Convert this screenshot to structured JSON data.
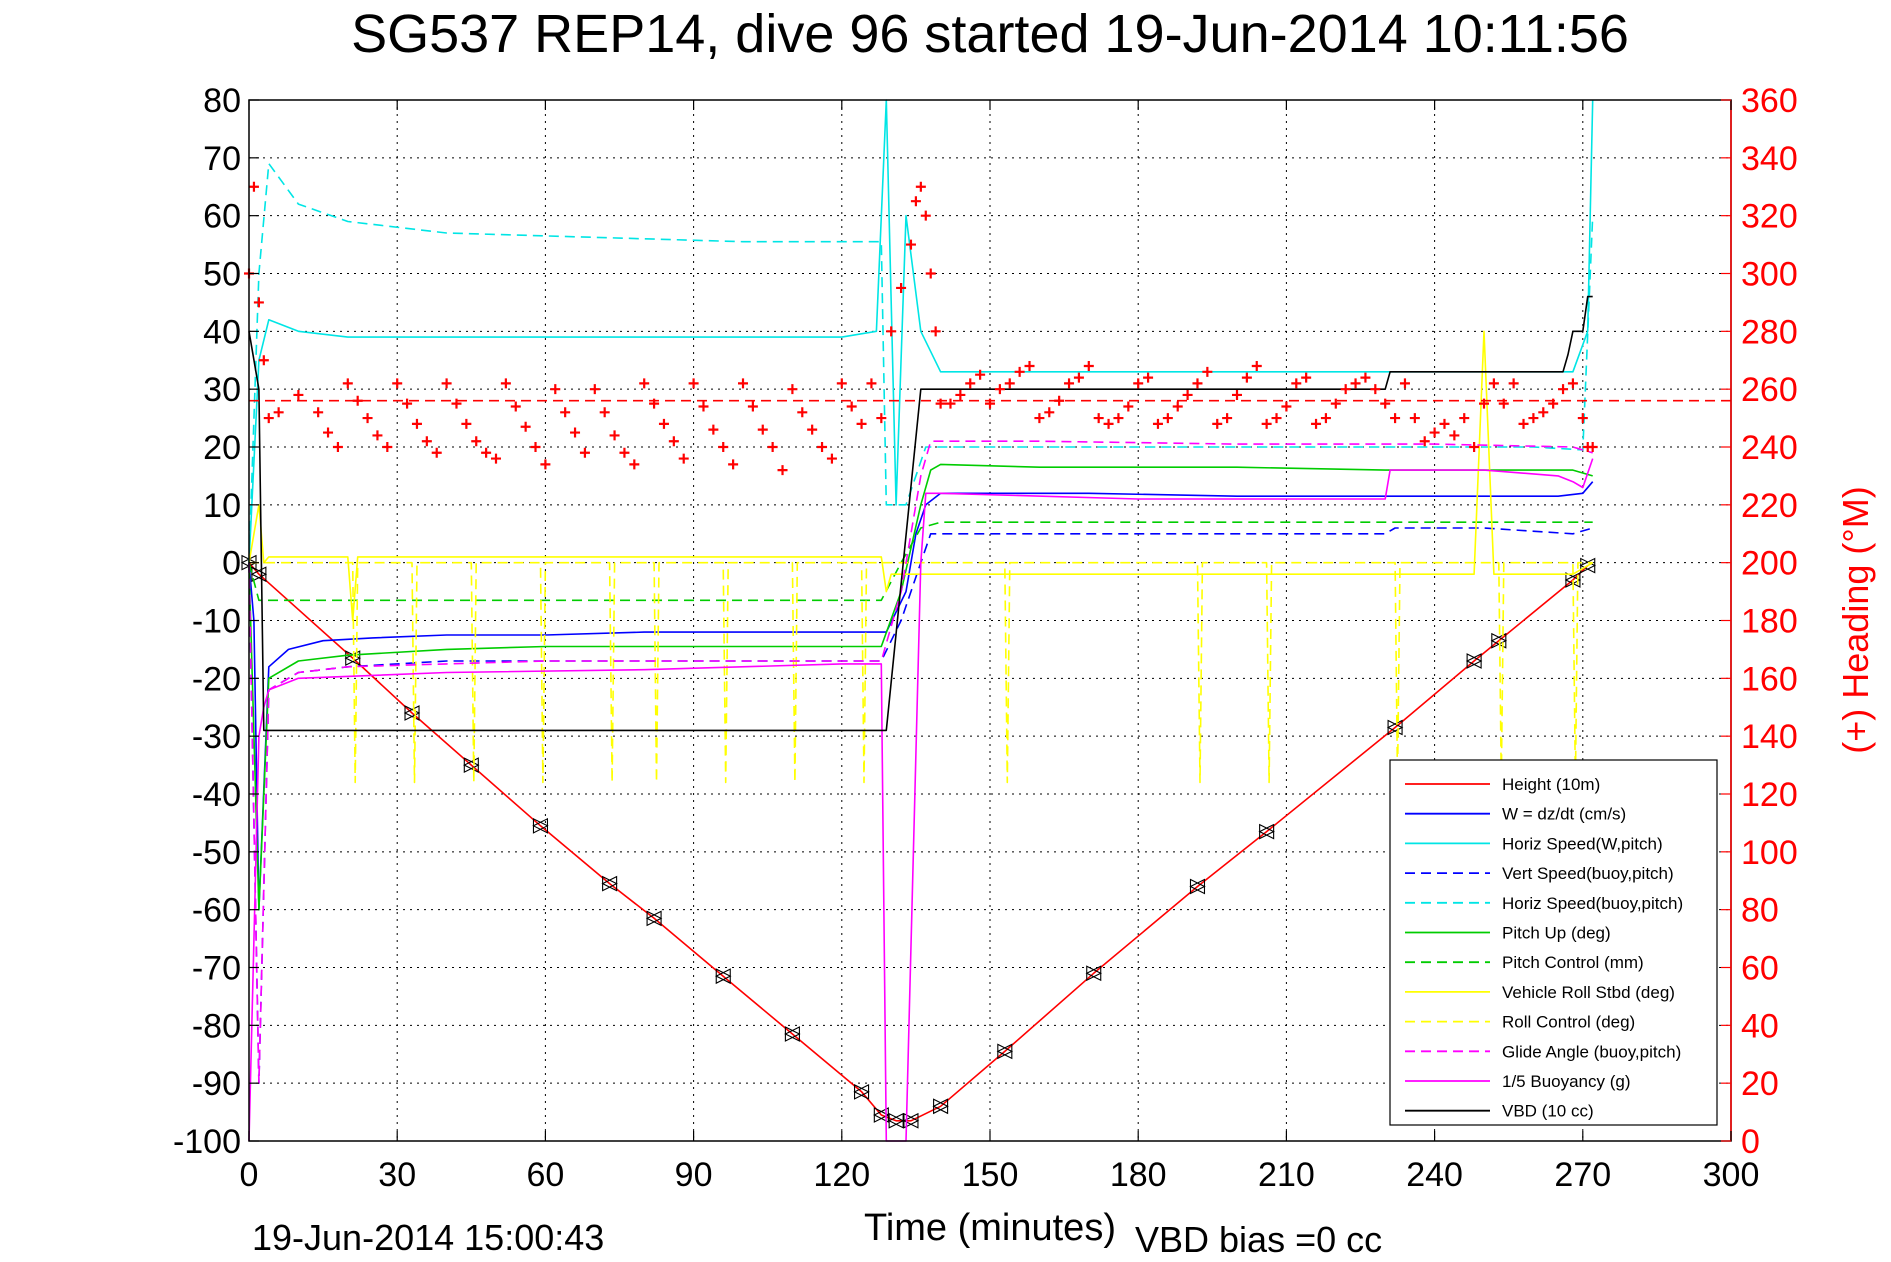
{
  "chart_data": {
    "type": "line",
    "title": "SG537 REP14, dive 96 started 19-Jun-2014 10:11:56",
    "xlabel": "Time (minutes)",
    "ylabel": "",
    "y2label": "(+) Heading (°M)",
    "xlim": [
      0,
      300
    ],
    "ylim": [
      -100,
      80
    ],
    "y2lim": [
      0,
      360
    ],
    "xticks": [
      "0",
      "30",
      "60",
      "90",
      "120",
      "150",
      "180",
      "210",
      "240",
      "270",
      "300"
    ],
    "yticks": [
      "80",
      "70",
      "60",
      "50",
      "40",
      "30",
      "20",
      "10",
      "0",
      "-10",
      "-20",
      "-30",
      "-40",
      "-50",
      "-60",
      "-70",
      "-80",
      "-90",
      "-100"
    ],
    "y2ticks": [
      "360",
      "340",
      "320",
      "300",
      "280",
      "260",
      "240",
      "220",
      "200",
      "180",
      "160",
      "140",
      "120",
      "100",
      "80",
      "60",
      "40",
      "20",
      "0"
    ],
    "grid": true,
    "legend_position": "bottom-right",
    "footer_left": "19-Jun-2014 15:00:43",
    "footer_right": "VBD bias =0 cc",
    "series": [
      {
        "name": "Height (10m)",
        "color": "#ff0000",
        "dash": "solid",
        "x": [
          0,
          2,
          21,
          33,
          45,
          59,
          73,
          82,
          96,
          110,
          124,
          128,
          131,
          134,
          140,
          153,
          171,
          192,
          206,
          232,
          248,
          253,
          268,
          271
        ],
        "y": [
          0,
          -2,
          -16.5,
          -26,
          -35,
          -45.5,
          -55.5,
          -61.5,
          -71.5,
          -81.5,
          -91.5,
          -95.5,
          -96.5,
          -96.5,
          -94,
          -84.5,
          -71,
          -56,
          -46.5,
          -28.5,
          -17,
          -13.5,
          -3,
          -0.5
        ]
      },
      {
        "name": "W = dz/dt (cm/s)",
        "color": "#0000ff",
        "dash": "solid",
        "x": [
          0,
          1,
          2,
          4,
          8,
          15,
          25,
          40,
          60,
          80,
          100,
          120,
          129,
          133,
          135,
          137,
          140,
          150,
          170,
          200,
          230,
          250,
          265,
          270,
          272
        ],
        "y": [
          0,
          -10,
          -60,
          -18,
          -15,
          -13.5,
          -13,
          -12.5,
          -12.5,
          -12,
          -12,
          -12,
          -12,
          -5,
          5,
          10,
          12,
          12,
          12,
          11.5,
          11.5,
          11.5,
          11.5,
          12,
          14
        ]
      },
      {
        "name": "Horiz Speed(W,pitch)",
        "color": "#00e5e5",
        "dash": "solid",
        "x": [
          0,
          2,
          4,
          10,
          20,
          40,
          60,
          80,
          100,
          120,
          127,
          129,
          131,
          133,
          136,
          140,
          160,
          200,
          240,
          268,
          271,
          272
        ],
        "y": [
          0,
          35,
          42,
          40,
          39,
          39,
          39,
          39,
          39,
          39,
          40,
          80,
          10,
          60,
          40,
          33,
          33,
          33,
          33,
          33,
          40,
          80
        ]
      },
      {
        "name": "Vert Speed(buoy,pitch)",
        "color": "#0000ff",
        "dash": "dashed",
        "x": [
          0,
          2,
          4,
          10,
          20,
          40,
          60,
          80,
          100,
          120,
          128,
          132,
          136,
          138,
          140,
          150,
          180,
          210,
          230,
          232,
          250,
          268,
          272
        ],
        "y": [
          0,
          -90,
          -22,
          -19,
          -18,
          -17,
          -17,
          -17,
          -17,
          -17,
          -17,
          -10,
          0,
          5,
          5,
          5,
          5,
          5,
          5,
          6,
          6,
          5,
          6
        ]
      },
      {
        "name": "Horiz Speed(buoy,pitch)",
        "color": "#00e5e5",
        "dash": "dashed",
        "x": [
          0,
          2,
          4,
          10,
          20,
          40,
          60,
          80,
          100,
          120,
          128,
          129,
          133,
          137,
          140,
          160,
          200,
          230,
          232,
          260,
          270,
          272
        ],
        "y": [
          0,
          50,
          69,
          62,
          59,
          57,
          56.5,
          56,
          55.5,
          55.5,
          55.5,
          10,
          10,
          20,
          20,
          20,
          20,
          20,
          20,
          20,
          19.5,
          60
        ]
      },
      {
        "name": "Pitch Up (deg)",
        "color": "#00cc00",
        "dash": "solid",
        "x": [
          0,
          2,
          4,
          10,
          20,
          40,
          60,
          80,
          100,
          120,
          128,
          132,
          136,
          138,
          140,
          160,
          200,
          230,
          250,
          268,
          272
        ],
        "y": [
          0,
          -60,
          -20,
          -17,
          -16,
          -15,
          -14.5,
          -14.5,
          -14.5,
          -14.5,
          -14.5,
          -5,
          10,
          16,
          17,
          16.5,
          16.5,
          16,
          16,
          16,
          15
        ]
      },
      {
        "name": "Pitch Control (mm)",
        "color": "#00cc00",
        "dash": "dashed",
        "x": [
          0,
          2,
          5,
          20,
          60,
          100,
          128,
          132,
          136,
          140,
          180,
          220,
          250,
          268,
          272
        ],
        "y": [
          0,
          -6.5,
          -6.5,
          -6.5,
          -6.5,
          -6.5,
          -6.5,
          0,
          6,
          7,
          7,
          7,
          7,
          7,
          7
        ]
      },
      {
        "name": "Vehicle Roll Stbd (deg)",
        "color": "#ffff00",
        "dash": "solid",
        "x": [
          0,
          2,
          3,
          4,
          20,
          21,
          22,
          60,
          100,
          128,
          129,
          130,
          140,
          160,
          200,
          248,
          250,
          252,
          268,
          272
        ],
        "y": [
          0,
          10,
          0,
          1,
          1,
          -10,
          1,
          1,
          1,
          1,
          -5,
          -2,
          -2,
          -2,
          -2,
          -2,
          40,
          -2,
          -2,
          0
        ]
      },
      {
        "name": "Roll Control (deg)",
        "color": "#ffff00",
        "dash": "dashed",
        "x": [
          0,
          3,
          4,
          21,
          21.5,
          22,
          33,
          33.5,
          34,
          45,
          45.5,
          46,
          59,
          59.5,
          60,
          73,
          73.5,
          74,
          82,
          82.5,
          83,
          96,
          96.5,
          97,
          110,
          110.5,
          111,
          124,
          124.5,
          125,
          128,
          140,
          153,
          153.5,
          154,
          192,
          192.5,
          193,
          206,
          206.5,
          207,
          232,
          232.5,
          233,
          253,
          253.5,
          254,
          268,
          268.5,
          269,
          272
        ],
        "y": [
          0,
          0,
          0,
          0,
          -38,
          0,
          0,
          -38,
          0,
          0,
          -38,
          0,
          0,
          -38,
          0,
          0,
          -38,
          0,
          0,
          -38,
          0,
          0,
          -38,
          0,
          0,
          -38,
          0,
          0,
          -38,
          0,
          0,
          0,
          0,
          -38,
          0,
          0,
          -38,
          0,
          0,
          -38,
          0,
          0,
          -38,
          0,
          0,
          -38,
          0,
          0,
          -38,
          0,
          0
        ]
      },
      {
        "name": "Glide Angle (buoy,pitch)",
        "color": "#ff00ff",
        "dash": "dashed",
        "x": [
          0,
          2,
          4,
          10,
          20,
          40,
          60,
          80,
          100,
          120,
          128,
          132,
          136,
          138,
          140,
          160,
          200,
          240,
          268,
          272
        ],
        "y": [
          0,
          -90,
          -22,
          -19,
          -18,
          -17.5,
          -17,
          -17,
          -17,
          -17,
          -17,
          -5,
          15,
          21,
          21,
          21,
          20.5,
          20.5,
          20,
          19
        ]
      },
      {
        "name": "1/5 Buoyancy (g)",
        "color": "#ff00ff",
        "dash": "solid",
        "x": [
          0,
          2,
          3,
          4,
          10,
          40,
          80,
          120,
          128,
          129,
          133,
          136,
          137,
          140,
          180,
          220,
          230,
          231,
          250,
          265,
          268,
          270,
          272
        ],
        "y": [
          -100,
          -30,
          -25,
          -22,
          -20,
          -19,
          -18.5,
          -17.5,
          -17.5,
          -100,
          -100,
          0,
          12,
          12,
          11,
          11,
          11,
          16,
          16,
          15,
          14,
          13,
          18
        ]
      },
      {
        "name": "VBD (10 cc)",
        "color": "#000000",
        "dash": "solid",
        "x": [
          0,
          2,
          3,
          4,
          20,
          60,
          100,
          128,
          129,
          136,
          137,
          140,
          180,
          220,
          230,
          231,
          250,
          266,
          267,
          268,
          270,
          271,
          272
        ],
        "y": [
          40,
          30,
          -29,
          -29,
          -29,
          -29,
          -29,
          -29,
          -29,
          30,
          30,
          30,
          30,
          30,
          30,
          33,
          33,
          33,
          36,
          40,
          40,
          46,
          46
        ]
      },
      {
        "name": "",
        "color": "#ff0000",
        "dash": "dashed",
        "axis": "y2",
        "x": [
          0,
          300
        ],
        "y": [
          256,
          256
        ]
      },
      {
        "name": "",
        "color": "#ff0000",
        "dash": "markers",
        "axis": "y2",
        "x": [
          0,
          1,
          2,
          3,
          4,
          6,
          10,
          14,
          16,
          18,
          20,
          22,
          24,
          26,
          28,
          30,
          32,
          34,
          36,
          38,
          40,
          42,
          44,
          46,
          48,
          50,
          52,
          54,
          56,
          58,
          60,
          62,
          64,
          66,
          68,
          70,
          72,
          74,
          76,
          78,
          80,
          82,
          84,
          86,
          88,
          90,
          92,
          94,
          96,
          98,
          100,
          102,
          104,
          106,
          108,
          110,
          112,
          114,
          116,
          118,
          120,
          122,
          124,
          126,
          128,
          130,
          132,
          134,
          135,
          136,
          137,
          138,
          139,
          140,
          142,
          144,
          146,
          148,
          150,
          152,
          154,
          156,
          158,
          160,
          162,
          164,
          166,
          168,
          170,
          172,
          174,
          176,
          178,
          180,
          182,
          184,
          186,
          188,
          190,
          192,
          194,
          196,
          198,
          200,
          202,
          204,
          206,
          208,
          210,
          212,
          214,
          216,
          218,
          220,
          222,
          224,
          226,
          228,
          230,
          232,
          234,
          236,
          238,
          240,
          242,
          244,
          246,
          248,
          250,
          252,
          254,
          256,
          258,
          260,
          262,
          264,
          266,
          268,
          270,
          271,
          272
        ],
        "y": [
          300,
          330,
          290,
          270,
          250,
          252,
          258,
          252,
          245,
          240,
          262,
          256,
          250,
          244,
          240,
          262,
          255,
          248,
          242,
          238,
          262,
          255,
          248,
          242,
          238,
          236,
          262,
          254,
          247,
          240,
          234,
          260,
          252,
          245,
          238,
          260,
          252,
          244,
          238,
          234,
          262,
          255,
          248,
          242,
          236,
          262,
          254,
          246,
          240,
          234,
          262,
          254,
          246,
          240,
          232,
          260,
          252,
          246,
          240,
          236,
          262,
          254,
          248,
          262,
          250,
          280,
          295,
          310,
          325,
          330,
          320,
          300,
          280,
          255,
          255,
          258,
          262,
          265,
          255,
          260,
          262,
          266,
          268,
          250,
          252,
          256,
          262,
          264,
          268,
          250,
          248,
          250,
          254,
          262,
          264,
          248,
          250,
          254,
          258,
          262,
          266,
          248,
          250,
          258,
          264,
          268,
          248,
          250,
          254,
          262,
          264,
          248,
          250,
          255,
          260,
          262,
          264,
          260,
          255,
          250,
          262,
          250,
          242,
          245,
          248,
          244,
          250,
          240,
          255,
          262,
          255,
          262,
          248,
          250,
          252,
          255,
          260,
          262,
          250,
          240,
          240
        ]
      }
    ]
  },
  "legend": [
    {
      "label": "Height (10m)",
      "color": "#ff0000",
      "dash": "solid"
    },
    {
      "label": "W = dz/dt (cm/s)",
      "color": "#0000ff",
      "dash": "solid"
    },
    {
      "label": "Horiz Speed(W,pitch)",
      "color": "#00e5e5",
      "dash": "solid"
    },
    {
      "label": "Vert Speed(buoy,pitch)",
      "color": "#0000ff",
      "dash": "dashed"
    },
    {
      "label": "Horiz Speed(buoy,pitch)",
      "color": "#00e5e5",
      "dash": "dashed"
    },
    {
      "label": "Pitch Up (deg)",
      "color": "#00cc00",
      "dash": "solid"
    },
    {
      "label": "Pitch Control (mm)",
      "color": "#00cc00",
      "dash": "dashed"
    },
    {
      "label": "Vehicle Roll Stbd (deg)",
      "color": "#ffff00",
      "dash": "solid"
    },
    {
      "label": "Roll Control (deg)",
      "color": "#ffff00",
      "dash": "dashed"
    },
    {
      "label": "Glide Angle (buoy,pitch)",
      "color": "#ff00ff",
      "dash": "dashed"
    },
    {
      "label": "1/5 Buoyancy (g)",
      "color": "#ff00ff",
      "dash": "solid"
    },
    {
      "label": "VBD (10 cc)",
      "color": "#000000",
      "dash": "solid"
    }
  ]
}
